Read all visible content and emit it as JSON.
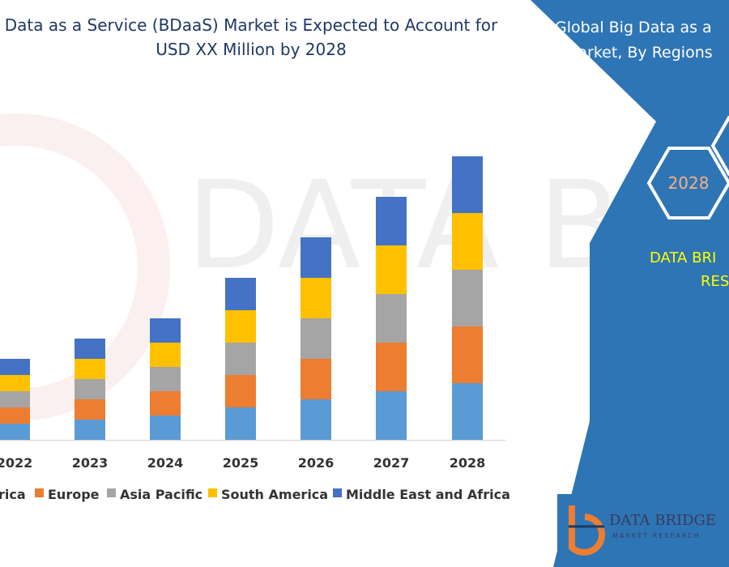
{
  "title_line1": "Data as a Service (BDaaS) Market is Expected to Account for",
  "title_line2": "USD XX Million by 2028",
  "panel": {
    "title_line1": "Global Big Data as a",
    "title_line2": "Market, By Regions",
    "hex_year": "2028",
    "brand_line1": "DATA BRI",
    "brand_line2": "RES",
    "color": "#2e75b6"
  },
  "logo": {
    "main": "DATA BRIDGE",
    "sub": "MARKET RESEARCH"
  },
  "chart_data": {
    "type": "bar",
    "stacked": true,
    "categories": [
      "2022",
      "2023",
      "2024",
      "2025",
      "2026",
      "2027",
      "2028"
    ],
    "series": [
      {
        "name": "rica",
        "color": "#5b9bd5",
        "values": [
          20,
          25,
          30,
          40,
          50,
          60,
          70
        ]
      },
      {
        "name": "Europe",
        "color": "#ed7d31",
        "values": [
          20,
          25,
          30,
          40,
          50,
          60,
          70
        ]
      },
      {
        "name": "Asia Pacific",
        "color": "#a5a5a5",
        "values": [
          20,
          25,
          30,
          40,
          50,
          60,
          70
        ]
      },
      {
        "name": "South America",
        "color": "#ffc000",
        "values": [
          20,
          25,
          30,
          40,
          50,
          60,
          70
        ]
      },
      {
        "name": "Middle East and Africa",
        "color": "#4472c4",
        "values": [
          20,
          25,
          30,
          40,
          50,
          60,
          70
        ]
      }
    ],
    "ylim": [
      0,
      365
    ],
    "grid": false,
    "legend": "bottom"
  }
}
